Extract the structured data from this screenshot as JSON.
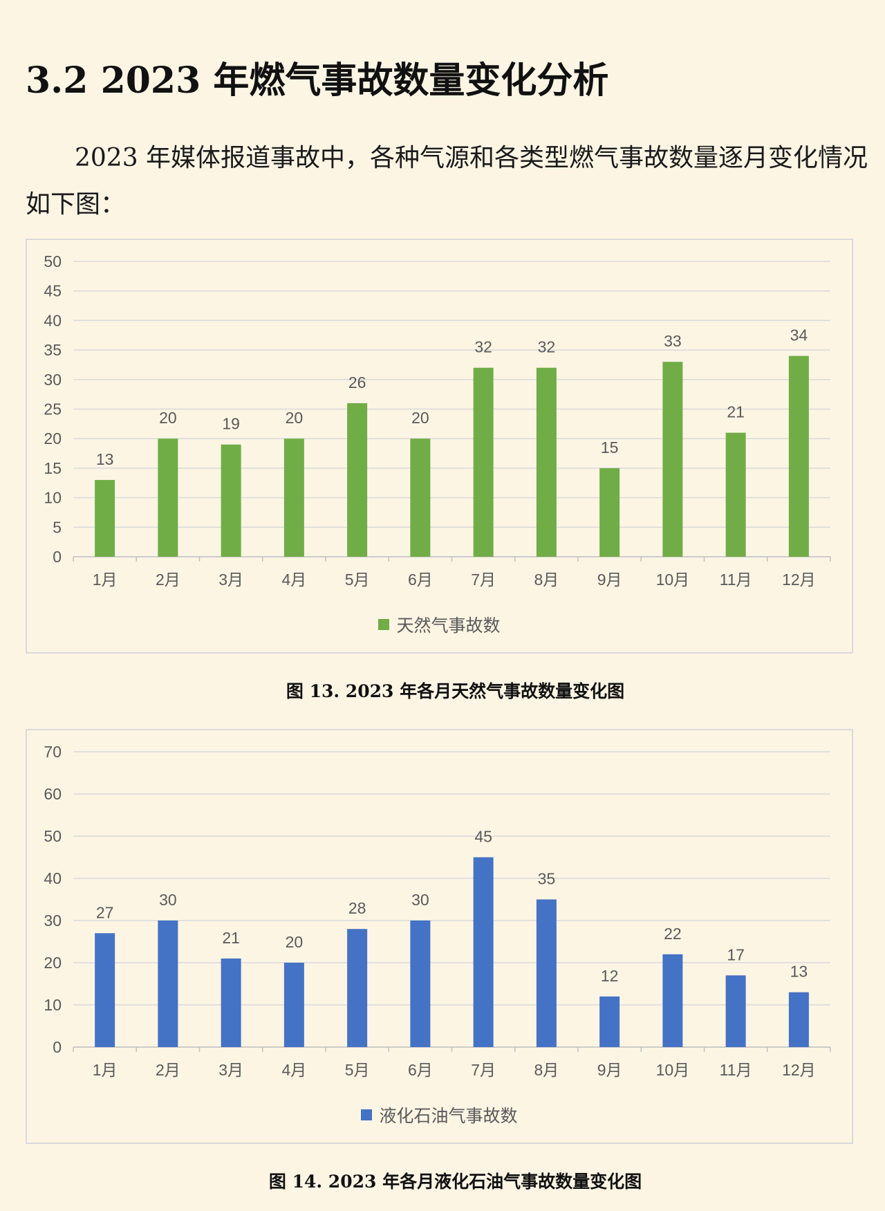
{
  "page": {
    "heading": "3.2 2023 年燃气事故数量变化分析",
    "paragraph": "2023 年媒体报道事故中，各种气源和各类型燃气事故数量逐月变化情况如下图：",
    "colors": {
      "background": "#fdf5e4",
      "chart_border": "#d9d9d9"
    }
  },
  "chart_data": [
    {
      "type": "bar",
      "title": "图 13. 2023 年各月天然气事故数量变化图",
      "categories": [
        "1月",
        "2月",
        "3月",
        "4月",
        "5月",
        "6月",
        "7月",
        "8月",
        "9月",
        "10月",
        "11月",
        "12月"
      ],
      "series": [
        {
          "name": "天然气事故数",
          "color": "#70ad47",
          "values": [
            13,
            20,
            19,
            20,
            26,
            20,
            32,
            32,
            15,
            33,
            21,
            34
          ]
        }
      ],
      "ylim": [
        0,
        50
      ],
      "yticks": [
        0,
        5,
        10,
        15,
        20,
        25,
        30,
        35,
        40,
        45,
        50
      ],
      "grid": true,
      "legend": "bottom",
      "data_labels": true
    },
    {
      "type": "bar",
      "title": "图 14. 2023 年各月液化石油气事故数量变化图",
      "categories": [
        "1月",
        "2月",
        "3月",
        "4月",
        "5月",
        "6月",
        "7月",
        "8月",
        "9月",
        "10月",
        "11月",
        "12月"
      ],
      "series": [
        {
          "name": "液化石油气事故数",
          "color": "#4472c4",
          "values": [
            27,
            30,
            21,
            20,
            28,
            30,
            45,
            35,
            12,
            22,
            17,
            13
          ]
        }
      ],
      "ylim": [
        0,
        70
      ],
      "yticks": [
        0,
        10,
        20,
        30,
        40,
        50,
        60,
        70
      ],
      "grid": true,
      "legend": "bottom",
      "data_labels": true
    }
  ]
}
